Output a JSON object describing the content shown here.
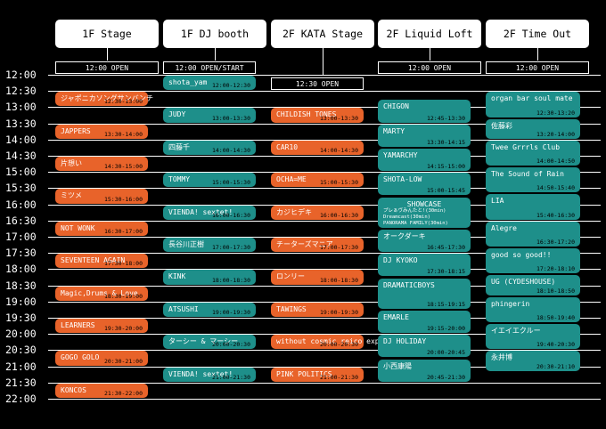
{
  "stages": [
    {
      "label": "1F Stage",
      "open": "12:00 OPEN"
    },
    {
      "label": "1F DJ booth",
      "open": "12:00 OPEN/START"
    },
    {
      "label": "2F KATA Stage",
      "open": "12:30 OPEN"
    },
    {
      "label": "2F Liquid Loft",
      "open": "12:00 OPEN"
    },
    {
      "label": "2F Time Out",
      "open": "12:00 OPEN"
    }
  ],
  "times": [
    "12:00",
    "12:30",
    "13:00",
    "13:30",
    "14:00",
    "14:30",
    "15:00",
    "15:30",
    "16:00",
    "16:30",
    "17:00",
    "17:30",
    "18:00",
    "18:30",
    "19:00",
    "19:30",
    "20:00",
    "20:30",
    "21:00",
    "21:30",
    "22:00"
  ],
  "slots": {
    "stage1": [
      {
        "name": "ジャポニカソングサンバンチ",
        "time": "12:30-13:00"
      },
      {
        "name": "JAPPERS",
        "time": "13:30-14:00"
      },
      {
        "name": "片想い",
        "time": "14:30-15:00"
      },
      {
        "name": "ミツメ",
        "time": "15:30-16:00"
      },
      {
        "name": "NOT WONK",
        "time": "16:30-17:00"
      },
      {
        "name": "SEVENTEEN AGAIN",
        "time": "17:30-18:00"
      },
      {
        "name": "Magic,Drums & Love",
        "time": "18:30-19:00"
      },
      {
        "name": "LEARNERS",
        "time": "19:30-20:00"
      },
      {
        "name": "GOGO GOLO",
        "time": "20:30-21:00"
      },
      {
        "name": "KONCOS",
        "time": "21:30-22:00"
      }
    ],
    "dj": [
      {
        "name": "shota_yam",
        "time": "12:00-12:30"
      },
      {
        "name": "JUDY",
        "time": "13:00-13:30"
      },
      {
        "name": "四藤千",
        "time": "14:00-14:30"
      },
      {
        "name": "TOMMY",
        "time": "15:00-15:30"
      },
      {
        "name": "VIENDA! sextet!",
        "time": "16:00-16:30"
      },
      {
        "name": "長谷川正樹",
        "time": "17:00-17:30"
      },
      {
        "name": "KINK",
        "time": "18:00-18:30"
      },
      {
        "name": "ATSUSHI",
        "time": "19:00-19:30"
      },
      {
        "name": "ターシー & マーシー",
        "time": "20:00-20:30"
      },
      {
        "name": "VIENDA! sextet!",
        "time": "21:00-21:30"
      }
    ],
    "kata": [
      {
        "name": "CHILDISH TONES",
        "time": "13:00-13:30"
      },
      {
        "name": "CAR10",
        "time": "14:00-14:30"
      },
      {
        "name": "OCHA=ME",
        "time": "15:00-15:30"
      },
      {
        "name": "カジヒデキ",
        "time": "16:00-16:30"
      },
      {
        "name": "チーターズマニア",
        "time": "17:00-17:30"
      },
      {
        "name": "ロンリー",
        "time": "18:00-18:30"
      },
      {
        "name": "TAWINGS",
        "time": "19:00-19:30"
      },
      {
        "name": "without cosmic reico experience",
        "time": "20:00-20:30"
      },
      {
        "name": "PINK POLITICS",
        "time": "21:00-21:30"
      }
    ],
    "liquid": [
      {
        "name": "CHIGON",
        "time": "12:45-13:30"
      },
      {
        "name": "MARTY",
        "time": "13:30-14:15"
      },
      {
        "name": "YAMARCHY",
        "time": "14:15-15:00"
      },
      {
        "name": "SHOTA-LOW",
        "time": "15:00-15:45"
      },
      {
        "name": "SHOWCASE",
        "time": "",
        "sub1": "プレぁヴみんたと!(30min)",
        "sub2": "Dreamcast(30min)",
        "sub3": "PANORAMA FAMILY(30min)"
      },
      {
        "name": "オークダーキ",
        "time": "16:45-17:30"
      },
      {
        "name": "DJ KYOKO",
        "time": "17:30-18:15"
      },
      {
        "name": "DRAMATICBOYS",
        "time": "18:15-19:15"
      },
      {
        "name": "EMARLE",
        "time": "19:15-20:00"
      },
      {
        "name": "DJ HOLIDAY",
        "time": "20:00-20:45"
      },
      {
        "name": "小西康陽",
        "time": "20:45-21:30"
      }
    ],
    "timeout": [
      {
        "name": "organ bar soul mate",
        "time": "12:30-13:20"
      },
      {
        "name": "佐藤彩",
        "time": "13:20-14:00"
      },
      {
        "name": "Twee Grrrls Club",
        "time": "14:00-14:50"
      },
      {
        "name": "The Sound of Rain",
        "time": "14:50-15:40"
      },
      {
        "name": "LIA",
        "time": "15:40-16:30"
      },
      {
        "name": "Alegre",
        "time": "16:30-17:20"
      },
      {
        "name": "good so good!!",
        "time": "17:20-18:10"
      },
      {
        "name": "UG (CYDESHOUSE)",
        "time": "18:10-18:50"
      },
      {
        "name": "phingerin",
        "time": "18:50-19:40"
      },
      {
        "name": "イエイエクルー",
        "time": "19:40-20:30"
      },
      {
        "name": "永井博",
        "time": "20:30-21:10"
      }
    ]
  },
  "colors": {
    "orange": "#e8632a",
    "teal": "#1e8f8a",
    "background": "#000000"
  }
}
